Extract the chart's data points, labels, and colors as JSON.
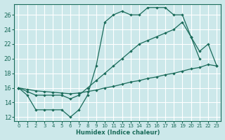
{
  "xlabel": "Humidex (Indice chaleur)",
  "bg_color": "#cce8ea",
  "grid_color": "#ffffff",
  "line_color": "#1a6b5a",
  "xlim": [
    -0.5,
    23.5
  ],
  "ylim": [
    11.5,
    27.5
  ],
  "xticks": [
    0,
    1,
    2,
    3,
    4,
    5,
    6,
    7,
    8,
    9,
    10,
    11,
    12,
    13,
    14,
    15,
    16,
    17,
    18,
    19,
    20,
    21,
    22,
    23
  ],
  "yticks": [
    12,
    14,
    16,
    18,
    20,
    22,
    24,
    26
  ],
  "line1_x": [
    0,
    1,
    2,
    3,
    4,
    5,
    6,
    7,
    8,
    9,
    10,
    11,
    12,
    13,
    14,
    15,
    16,
    17,
    18,
    19,
    20,
    21
  ],
  "line1_y": [
    16,
    15,
    13,
    13,
    13,
    13,
    12,
    13,
    15,
    19,
    25,
    26,
    26.5,
    26,
    26,
    27,
    27,
    27,
    26,
    26,
    23,
    20
  ],
  "line2_x": [
    0,
    1,
    2,
    3,
    4,
    5,
    6,
    7,
    8,
    9,
    10,
    11,
    12,
    13,
    14,
    15,
    16,
    17,
    18,
    19,
    20,
    21,
    22,
    23
  ],
  "line2_y": [
    16,
    15.5,
    15,
    15,
    15,
    15,
    14.5,
    15,
    16,
    17,
    18,
    19,
    20,
    21,
    22,
    22.5,
    23,
    23.5,
    24,
    25,
    23,
    21,
    22,
    19
  ],
  "line3_x": [
    0,
    1,
    2,
    3,
    4,
    5,
    6,
    7,
    8,
    9,
    10,
    11,
    12,
    13,
    14,
    15,
    16,
    17,
    18,
    19,
    20,
    21,
    22,
    23
  ],
  "line3_y": [
    16,
    15.8,
    15.6,
    15.5,
    15.4,
    15.3,
    15.2,
    15.3,
    15.5,
    15.7,
    16,
    16.2,
    16.5,
    16.8,
    17,
    17.3,
    17.5,
    17.8,
    18,
    18.3,
    18.6,
    18.8,
    19.2,
    19
  ]
}
